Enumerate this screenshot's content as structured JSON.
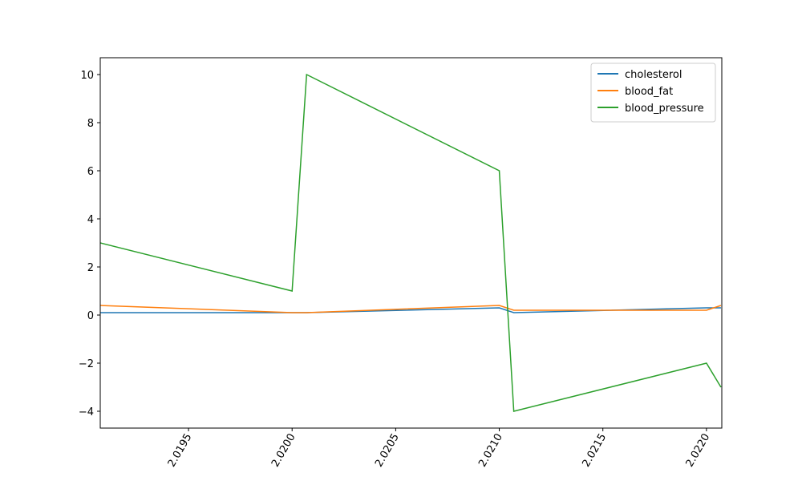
{
  "chart_data": {
    "type": "line",
    "x": [
      2.019074,
      2.02,
      2.02007,
      2.021,
      2.02107,
      2.022,
      2.02207
    ],
    "series": [
      {
        "name": "cholesterol",
        "color": "#1f77b4",
        "values": [
          0.1,
          0.1,
          0.1,
          0.3,
          0.1,
          0.3,
          0.3
        ]
      },
      {
        "name": "blood_fat",
        "color": "#ff7f0e",
        "values": [
          0.4,
          0.1,
          0.1,
          0.4,
          0.2,
          0.2,
          0.4
        ]
      },
      {
        "name": "blood_pressure",
        "color": "#2ca02c",
        "values": [
          3,
          1,
          10,
          6,
          -4,
          -2,
          -3
        ]
      }
    ],
    "xlim": [
      2.019074,
      2.022074
    ],
    "xticks": [
      2.0195,
      {
        "value": 2.02,
        "label": "2.0200"
      },
      2.0205,
      {
        "value": 2.021,
        "label": "2.0210"
      },
      2.0215,
      {
        "value": 2.022,
        "label": "2.0220"
      }
    ],
    "ylim": [
      -4.7,
      10.7
    ],
    "yticks": [
      {
        "value": -4,
        "label": "−4"
      },
      {
        "value": -2,
        "label": "−2"
      },
      0,
      2,
      4,
      6,
      8,
      10
    ],
    "legend": "upper right"
  }
}
